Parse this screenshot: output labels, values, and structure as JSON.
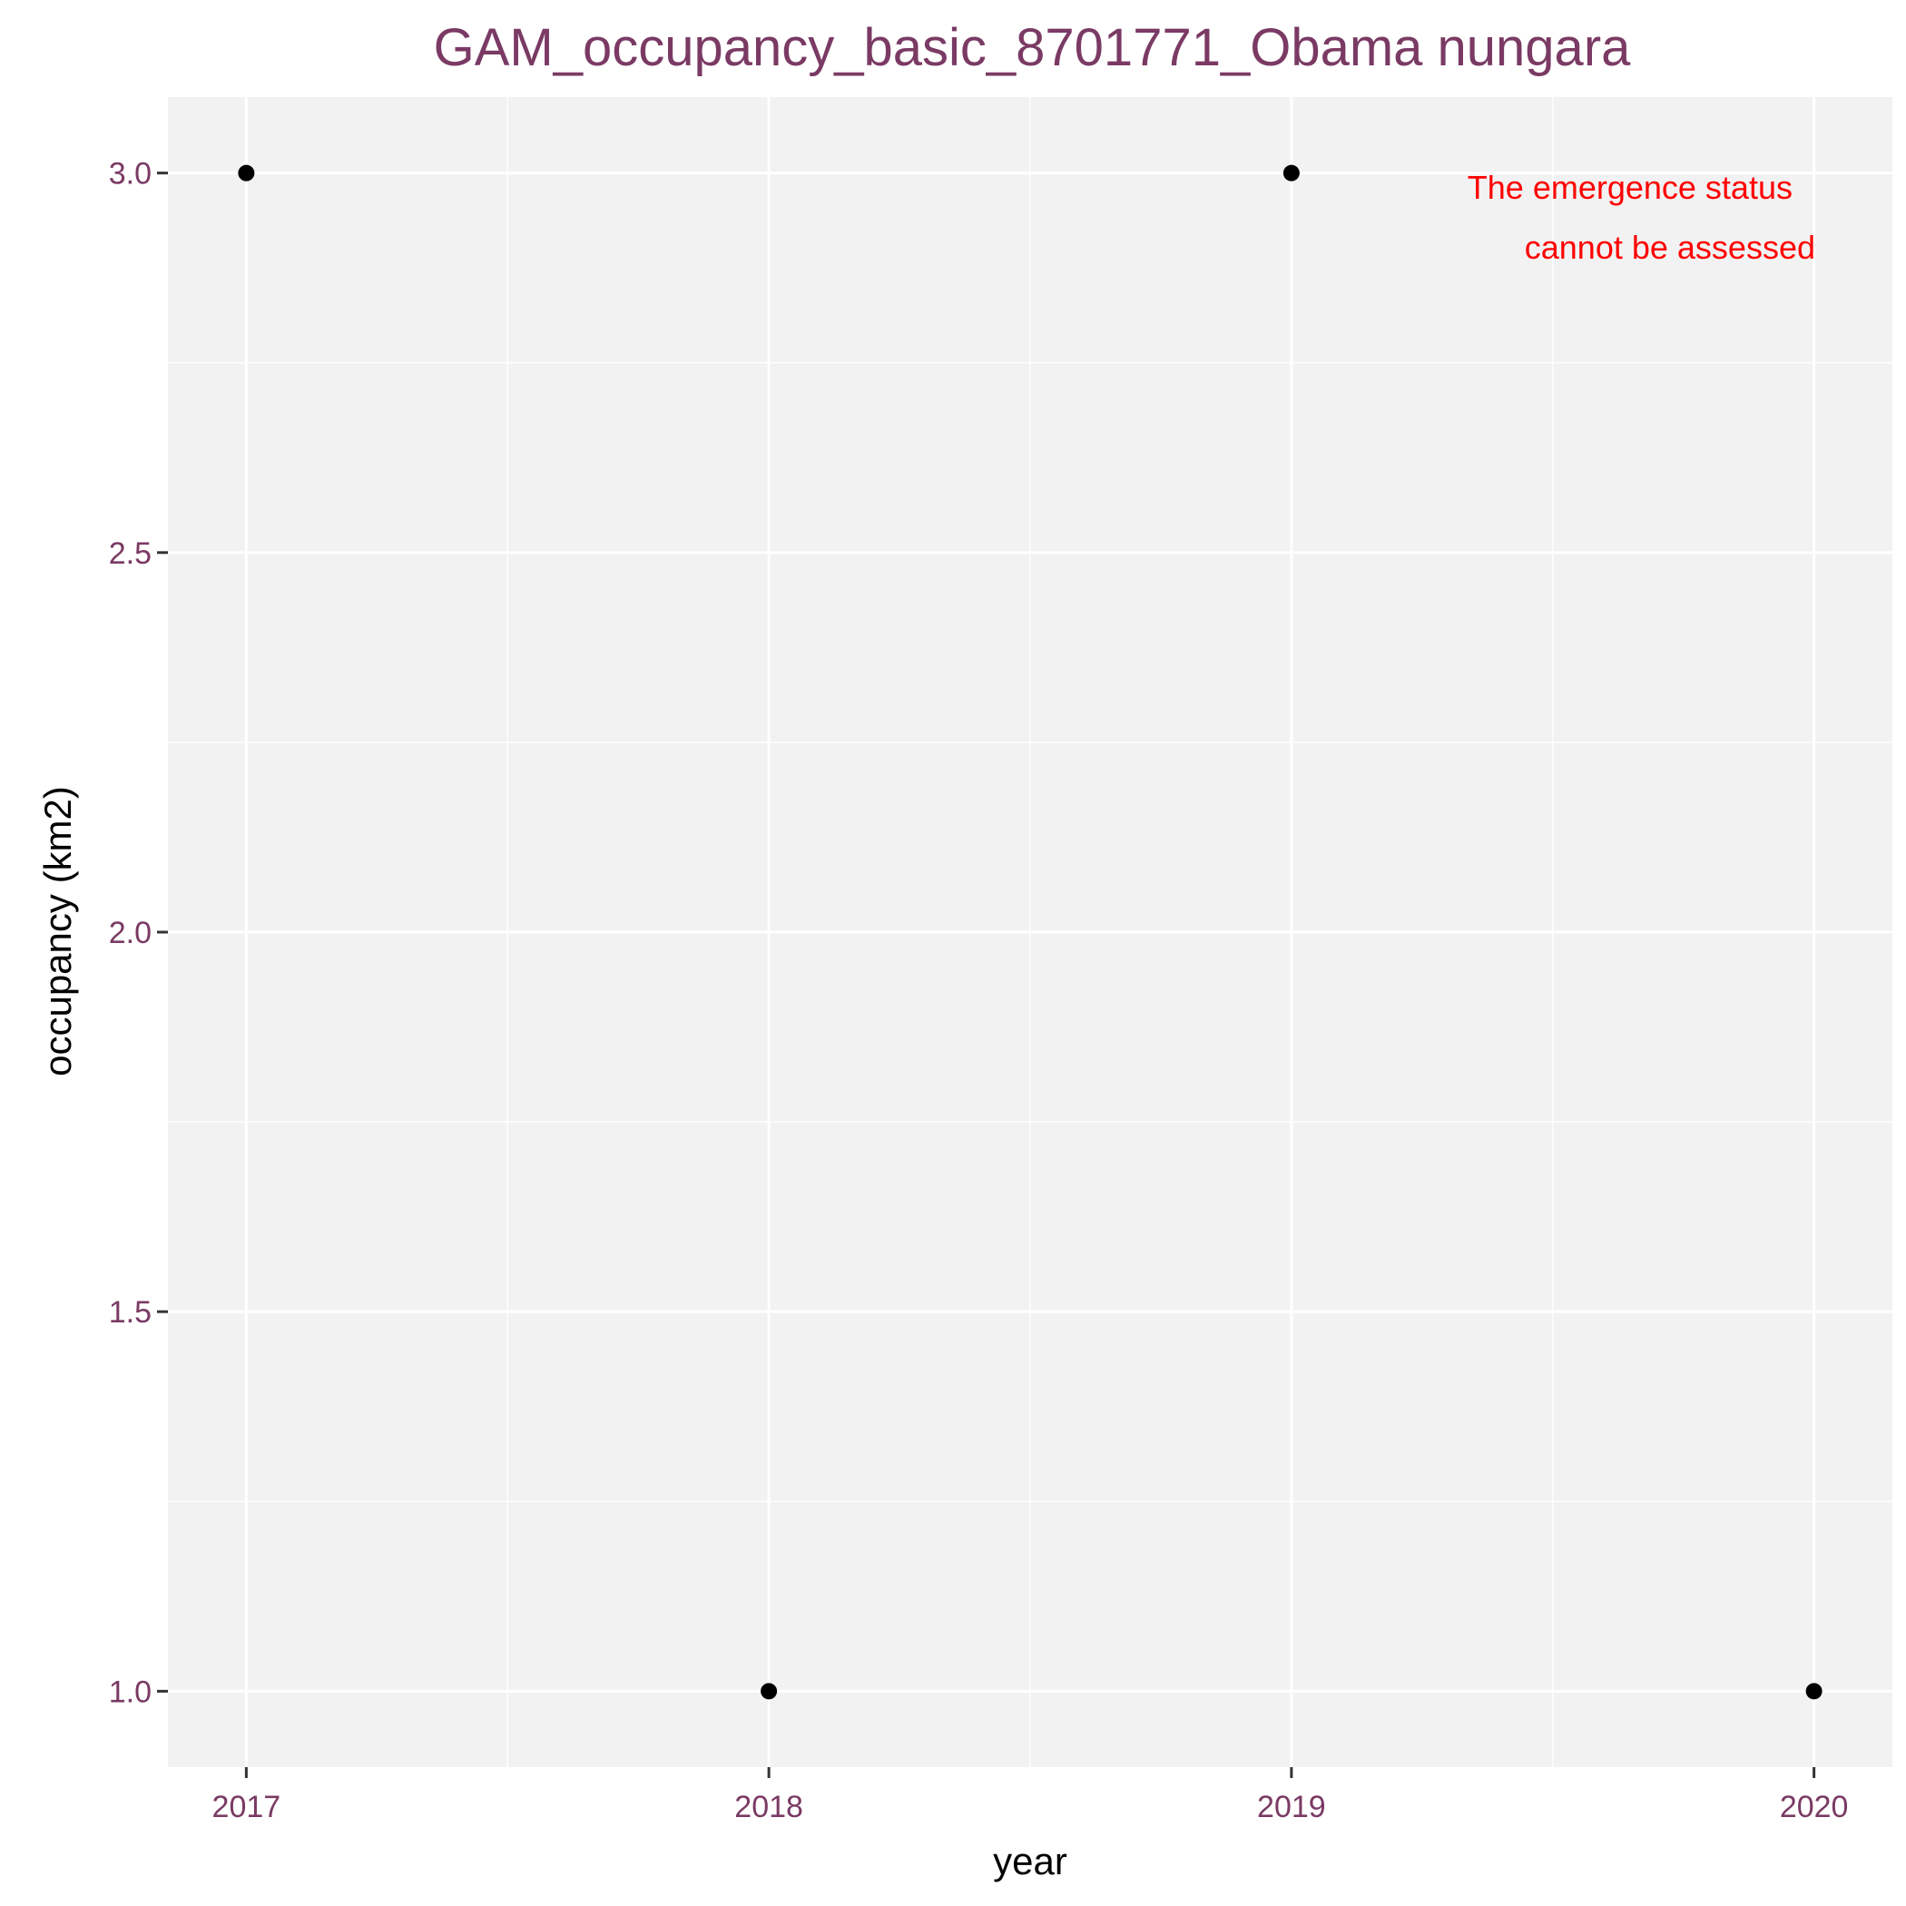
{
  "chart_data": {
    "type": "scatter",
    "title": "GAM_occupancy_basic_8701771_Obama nungara",
    "xlabel": "year",
    "ylabel": "occupancy (km2)",
    "x": [
      2017,
      2018,
      2019,
      2020
    ],
    "y": [
      3.0,
      1.0,
      3.0,
      1.0
    ],
    "xlim": [
      2016.85,
      2020.15
    ],
    "ylim": [
      0.9,
      3.1
    ],
    "x_ticks": [
      "2017",
      "2018",
      "2019",
      "2020"
    ],
    "y_ticks": [
      "1.0",
      "1.5",
      "2.0",
      "2.5",
      "3.0"
    ],
    "grid": true,
    "legend": "none",
    "annotation": {
      "lines": [
        "The emergence status",
        "cannot be assessed"
      ],
      "position": "top-right"
    },
    "colors": {
      "title": "#7a3a64",
      "tick_labels": "#7a3a64",
      "panel_background": "#f2f2f2",
      "grid": "#ffffff",
      "points": "#000000",
      "annotation": "#ff0000"
    }
  }
}
